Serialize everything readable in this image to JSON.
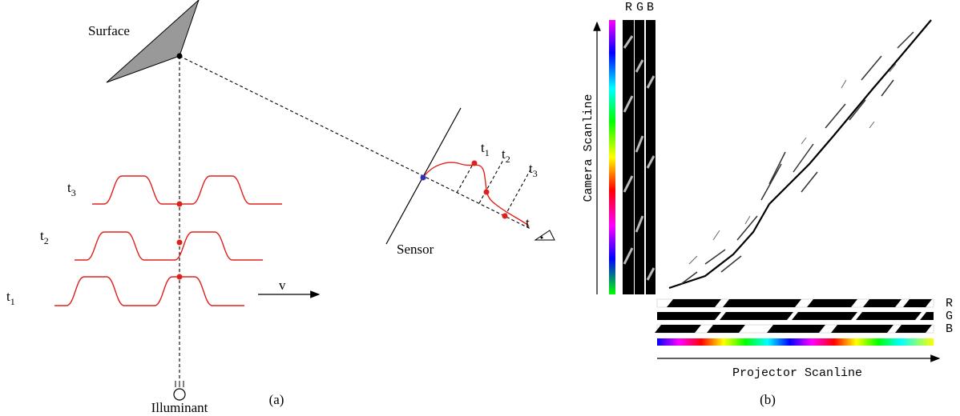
{
  "panel_a": {
    "surface": "Surface",
    "sensor": "Sensor",
    "illuminant": "Illuminant",
    "velocity": "v",
    "waves": [
      {
        "base": "t",
        "sub": "3"
      },
      {
        "base": "t",
        "sub": "2"
      },
      {
        "base": "t",
        "sub": "1"
      }
    ],
    "sensor_times": [
      {
        "base": "t",
        "sub": "1"
      },
      {
        "base": "t",
        "sub": "2"
      },
      {
        "base": "t",
        "sub": "3"
      }
    ],
    "sensor_t": "t",
    "caption": "(a)"
  },
  "panel_b": {
    "top_channels": [
      "R",
      "G",
      "B"
    ],
    "right_channels": [
      "R",
      "G",
      "B"
    ],
    "y_axis": "Camera Scanline",
    "x_axis": "Projector Scanline",
    "caption": "(b)"
  }
}
